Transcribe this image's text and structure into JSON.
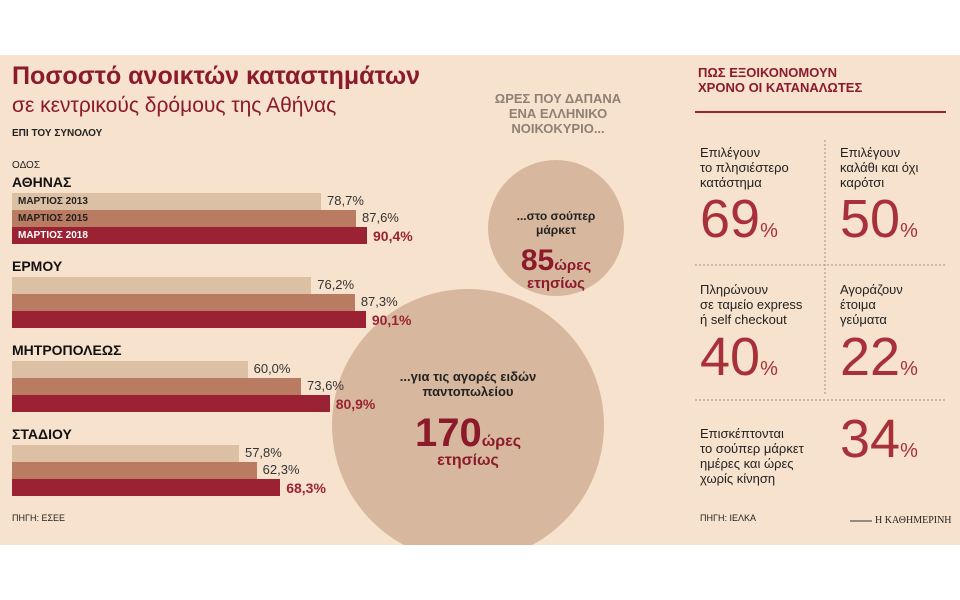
{
  "chart_data": [
    {
      "type": "bar",
      "title": "Ποσοστό ανοικτών καταστημάτων",
      "subtitle": "σε κεντρικούς δρόμους της Αθήνας",
      "note": "ΕΠΙ ΤΟΥ ΣΥΝΟΛΟΥ",
      "axis_label": "ΟΔΟΣ",
      "categories": [
        "ΑΘΗΝΑΣ",
        "ΕΡΜΟΥ",
        "ΜΗΤΡΟΠΟΛΕΩΣ",
        "ΣΤΑΔΙΟΥ"
      ],
      "series": [
        {
          "name": "ΜΑΡΤΙΟΣ 2013",
          "color": "#dcc0a4",
          "values": [
            78.7,
            76.2,
            60.0,
            57.8
          ],
          "value_labels": [
            "78,7%",
            "76,2%",
            "60,0%",
            "57,8%"
          ]
        },
        {
          "name": "ΜΑΡΤΙΟΣ 2015",
          "color": "#b97b62",
          "values": [
            87.6,
            87.3,
            73.6,
            62.3
          ],
          "value_labels": [
            "87,6%",
            "87,3%",
            "73,6%",
            "62,3%"
          ]
        },
        {
          "name": "ΜΑΡΤΙΟΣ 2018",
          "color": "#9b2233",
          "values": [
            90.4,
            90.1,
            80.9,
            68.3
          ],
          "value_labels": [
            "90,4%",
            "90,1%",
            "80,9%",
            "68,3%"
          ]
        }
      ],
      "source": "ΠΗΓΗ: ΕΣΕΕ"
    },
    {
      "type": "bubble",
      "title": "ΩΡΕΣ ΠΟΥ ΔΑΠΑΝΑ\nΕΝΑ ΕΛΛΗΝΙΚΟ\nΝΟΙΚΟΚΥΡΙΟ...",
      "categories": [
        "...στο σούπερ\nμάρκετ",
        "...για τις αγορές ειδών\nπαντοπωλείου"
      ],
      "values": [
        85,
        170
      ],
      "unit": "ώρες\nετησίως",
      "color": "#d7b89e"
    }
  ],
  "panel": {
    "title": "ΠΩΣ ΕΞΟΙΚΟΝΟΜΟΥΝ\nΧΡΟΝΟ ΟΙ ΚΑΤΑΝΑΛΩΤΕΣ",
    "percent_sign": "%",
    "items": [
      {
        "label": "Επιλέγουν\nτο πλησιέστερο\nκατάστημα",
        "value": 69
      },
      {
        "label": "Επιλέγουν\nκαλάθι και όχι\nκαρότσι",
        "value": 50
      },
      {
        "label": "Πληρώνουν\nσε ταμείο express\nή self checkout",
        "value": 40
      },
      {
        "label": "Αγοράζουν\nέτοιμα\nγεύματα",
        "value": 22
      },
      {
        "label": "Επισκέπτονται\nτο σούπερ μάρκετ\nημέρες και ώρες\nχωρίς κίνηση",
        "value": 34
      }
    ],
    "source": "ΠΗΓΗ: ΙΕΛΚΑ"
  },
  "credit": "Η ΚΑΘΗΜΕΡΙΝΗ"
}
